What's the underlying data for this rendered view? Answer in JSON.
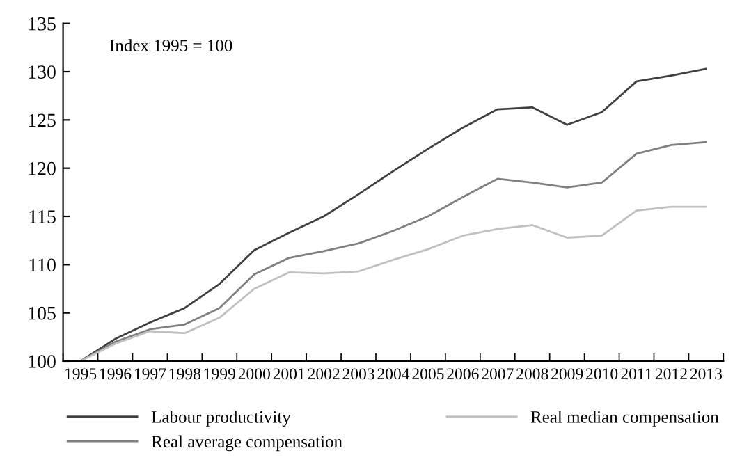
{
  "chart_data": {
    "type": "line",
    "annotations": [
      "Index 1995 = 100"
    ],
    "categories": [
      "1995",
      "1996",
      "1997",
      "1998",
      "1999",
      "2000",
      "2001",
      "2002",
      "2003",
      "2004",
      "2005",
      "2006",
      "2007",
      "2008",
      "2009",
      "2010",
      "2011",
      "2012",
      "2013"
    ],
    "series": [
      {
        "name": "Labour productivity",
        "color": "#404040",
        "values": [
          100,
          102.3,
          104,
          105.5,
          108,
          111.5,
          113.3,
          115,
          117.3,
          119.7,
          122,
          124.2,
          126.1,
          126.3,
          124.5,
          125.8,
          129,
          129.6,
          130.3
        ]
      },
      {
        "name": "Real average compensation",
        "color": "#808080",
        "values": [
          100,
          102,
          103.3,
          103.8,
          105.5,
          109,
          110.7,
          111.4,
          112.2,
          113.5,
          115,
          117,
          118.9,
          118.5,
          118,
          118.5,
          121.5,
          122.4,
          122.7
        ]
      },
      {
        "name": "Real median compensation",
        "color": "#c0c0c0",
        "values": [
          100,
          101.8,
          103.1,
          102.9,
          104.5,
          107.5,
          109.2,
          109.1,
          109.3,
          110.5,
          111.6,
          113,
          113.7,
          114.1,
          112.8,
          113,
          115.6,
          116,
          116
        ]
      }
    ],
    "ylim": [
      100,
      135
    ],
    "yticks": [
      100,
      105,
      110,
      115,
      120,
      125,
      130,
      135
    ],
    "grid": false,
    "legend": "bottom",
    "marker": "none",
    "line_style": "solid"
  }
}
